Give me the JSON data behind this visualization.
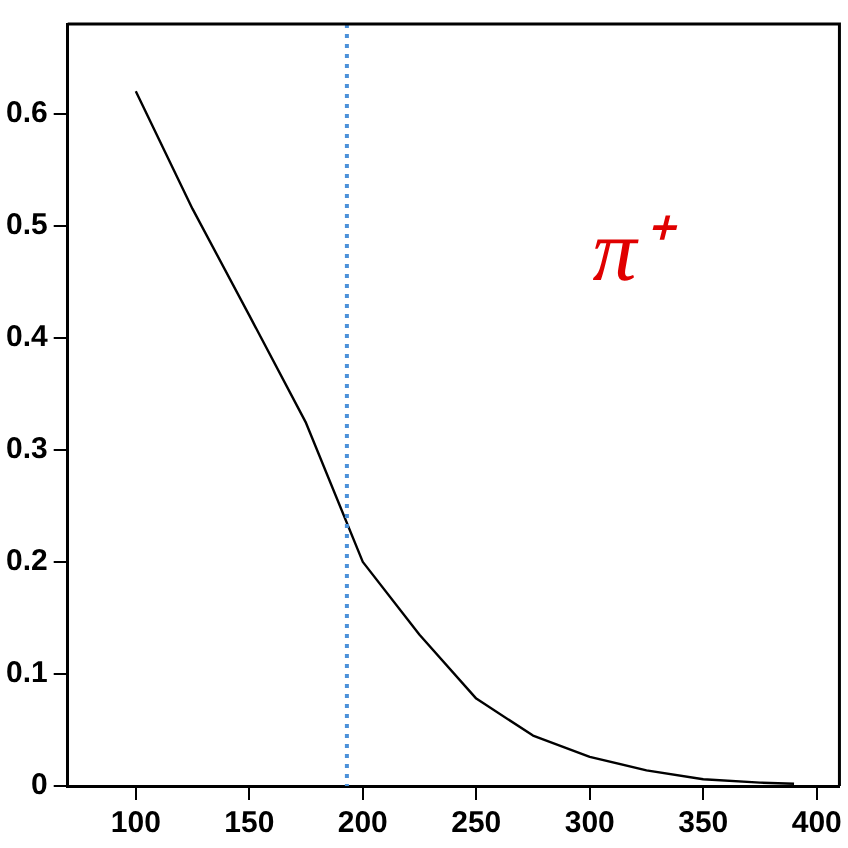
{
  "chart_data": {
    "type": "line",
    "x": [
      100,
      125,
      150,
      175,
      200,
      225,
      250,
      275,
      300,
      325,
      350,
      375,
      390
    ],
    "series": [
      {
        "color": "#000000",
        "values": [
          0.62,
          0.515,
          0.42,
          0.324,
          0.2,
          0.135,
          0.078,
          0.045,
          0.026,
          0.014,
          0.006,
          0.003,
          0.002
        ]
      }
    ],
    "xlim": [
      70,
      410
    ],
    "xticks": [
      100,
      150,
      200,
      250,
      300,
      350,
      400
    ],
    "ylim": [
      0,
      0.68
    ],
    "yticks": [
      0,
      0.1,
      0.2,
      0.3,
      0.4,
      0.5,
      0.6
    ],
    "ref_lines": [
      {
        "axis": "x",
        "value": 193,
        "color": "#4a90d9",
        "line_style": "dotted"
      }
    ],
    "annotations": [
      "π⁺"
    ],
    "grid": false,
    "legend": false,
    "marker": "none"
  }
}
